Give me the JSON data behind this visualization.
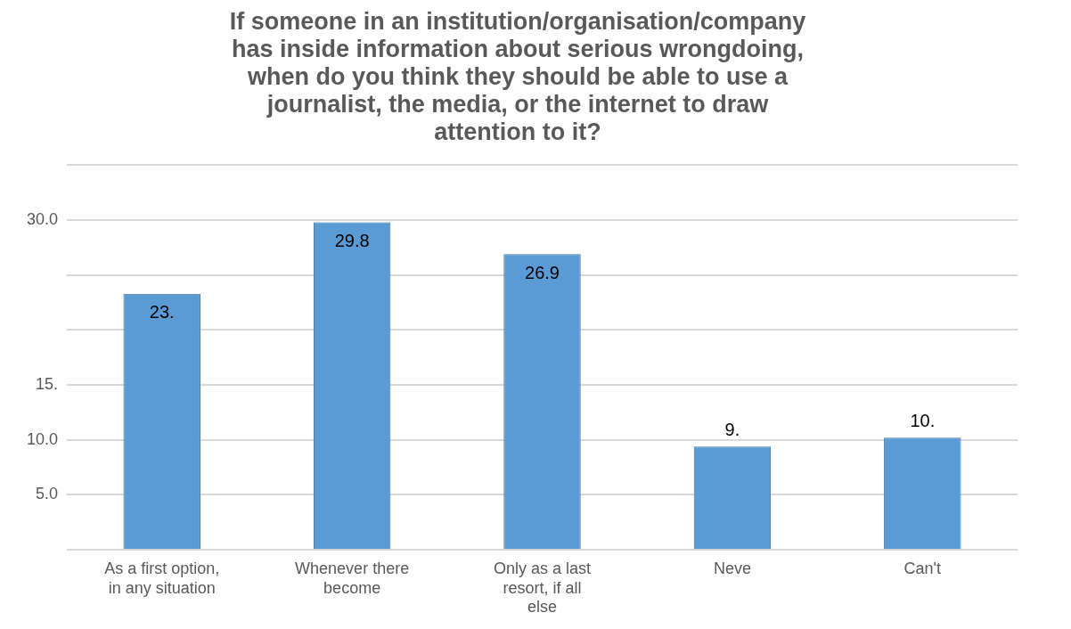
{
  "chart_data": {
    "type": "bar",
    "title": "If someone in an institution/organisation/company has inside information about serious wrongdoing, when do you think they should be able to use a journalist, the media, or the internet to draw attention to it?",
    "categories": [
      "As a first option, in any situation",
      "Whenever there become",
      "Only as a last resort, if all else",
      "Neve",
      "Can't"
    ],
    "values": [
      23.3,
      29.8,
      26.9,
      9.4,
      10.2
    ],
    "value_labels": [
      "23.",
      "29.8",
      "26.9",
      "9.",
      "10."
    ],
    "color": "#5b9bd5",
    "ylim": [
      0,
      35
    ],
    "yticks": [
      {
        "value": 0,
        "label": null
      },
      {
        "value": 5,
        "label": "5.0"
      },
      {
        "value": 10,
        "label": "10.0"
      },
      {
        "value": 15,
        "label": "15."
      },
      {
        "value": 20,
        "label": null
      },
      {
        "value": 25,
        "label": null
      },
      {
        "value": 30,
        "label": "30.0"
      },
      {
        "value": 35,
        "label": null
      }
    ],
    "grid": "y",
    "legend": false
  }
}
